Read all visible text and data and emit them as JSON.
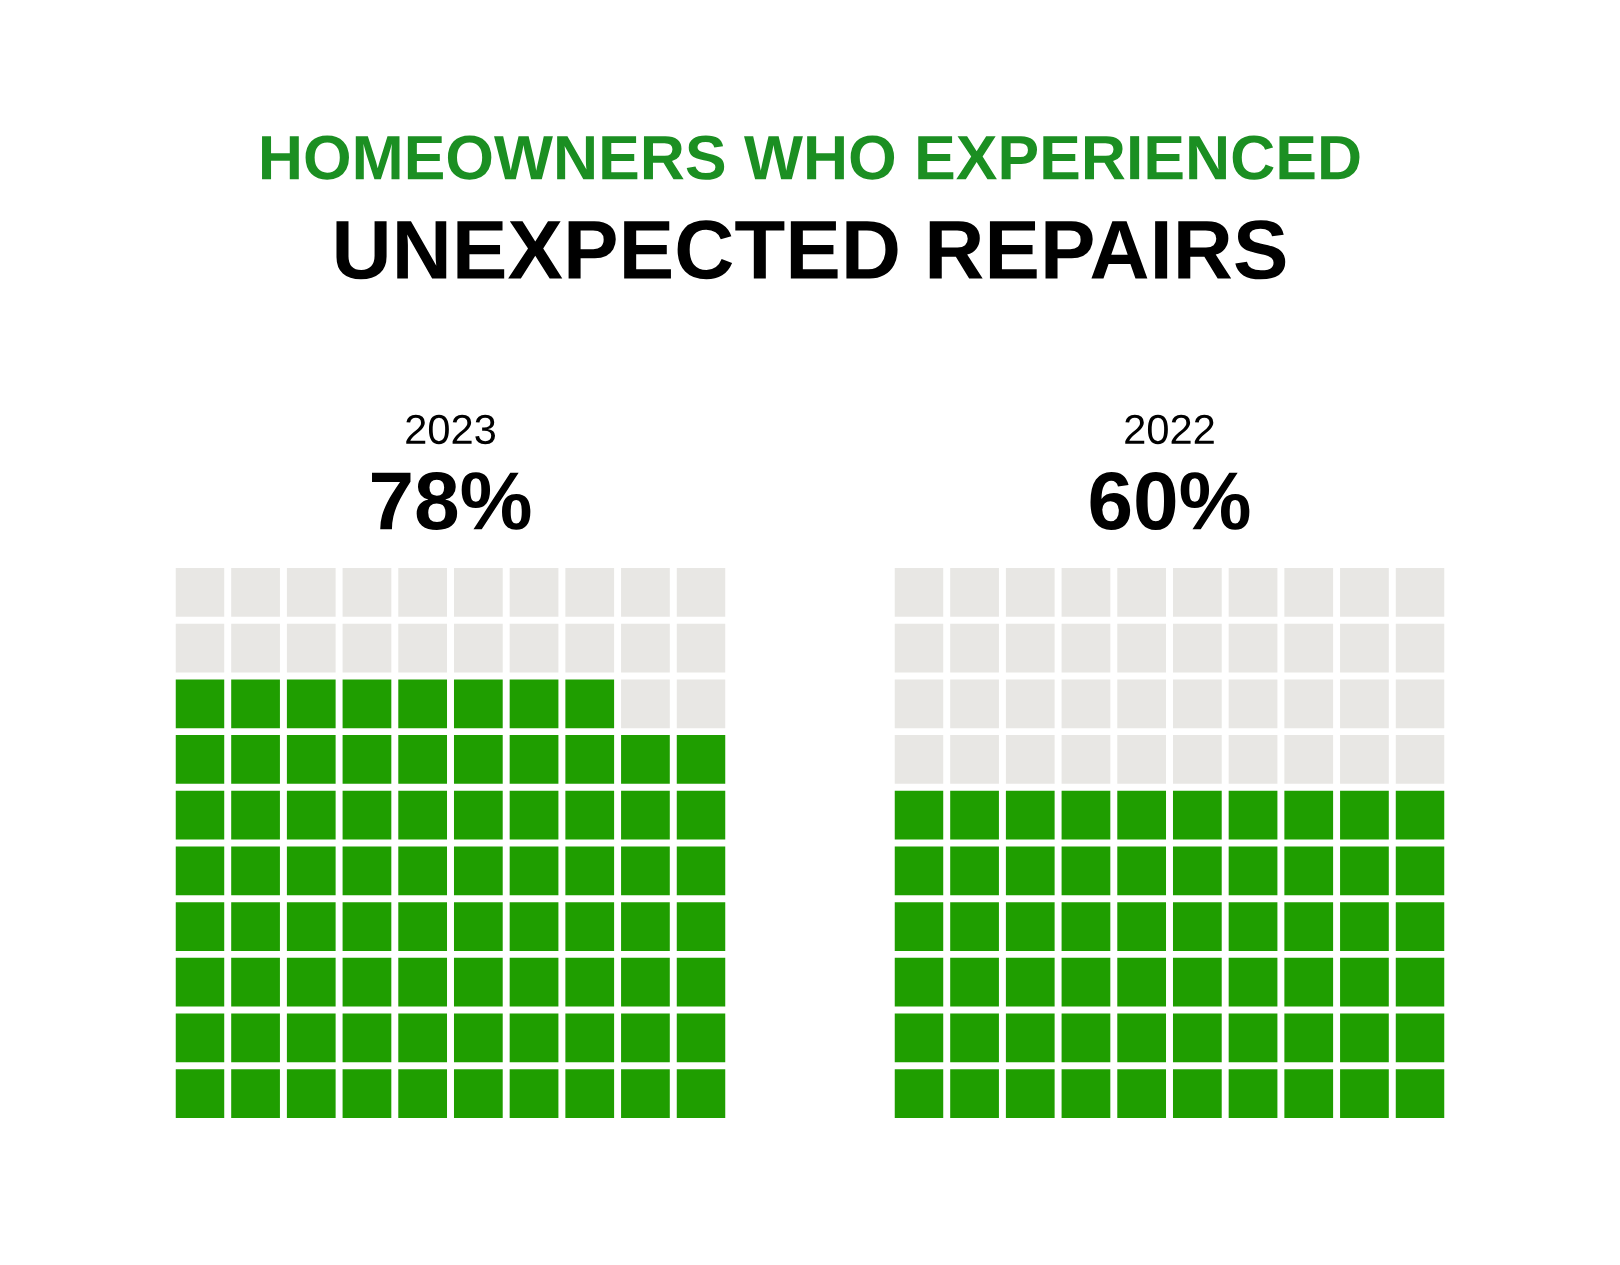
{
  "chart_data": {
    "type": "other",
    "title": "HOMEOWNERS WHO EXPERIENCED",
    "subtitle": "UNEXPECTED REPAIRS",
    "categories": [
      "2023",
      "2022"
    ],
    "values": [
      78,
      60
    ],
    "value_labels": [
      "78%",
      "60%"
    ],
    "color": "#1f9e00"
  }
}
